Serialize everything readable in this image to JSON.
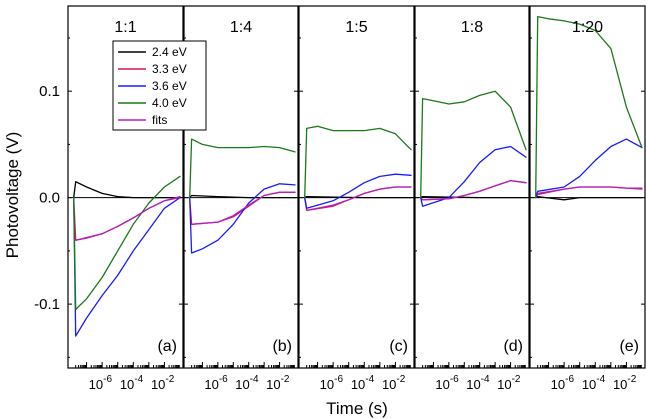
{
  "chart_data": {
    "type": "line",
    "xlabel": "Time (s)",
    "ylabel": "Photovoltage (V)",
    "xscale": "log",
    "xlim": [
      1e-08,
      0.1
    ],
    "ylim": [
      -0.16,
      0.18
    ],
    "yticks": [
      {
        "value": -0.1,
        "label": "-0.1"
      },
      {
        "value": 0.0,
        "label": "0.0"
      },
      {
        "value": 0.1,
        "label": "0.1"
      }
    ],
    "xticks": [
      {
        "value": 1e-06,
        "label": "10-6",
        "base": "10",
        "exp": "-6"
      },
      {
        "value": 0.0001,
        "label": "10-4",
        "base": "10",
        "exp": "-4"
      },
      {
        "value": 0.01,
        "label": "10-2",
        "base": "10",
        "exp": "-2"
      }
    ],
    "legend": [
      {
        "name": "2.4 eV",
        "color": "#000000"
      },
      {
        "name": "3.3 eV",
        "color": "#d4145a"
      },
      {
        "name": "3.6 eV",
        "color": "#1a1aff"
      },
      {
        "name": "4.0 eV",
        "color": "#1a7a1a"
      },
      {
        "name": "fits",
        "color": "#b020c0"
      }
    ],
    "legend_position": "top-left of first panel",
    "panels": [
      {
        "title": "1:1",
        "label": "(a)",
        "series": [
          {
            "name": "2.4 eV",
            "color": "#000000",
            "points": [
              [
                1.5e-08,
                0
              ],
              [
                2e-08,
                0.015
              ],
              [
                1e-07,
                0.01
              ],
              [
                1e-06,
                0.004
              ],
              [
                1e-05,
                0.001
              ],
              [
                0.0001,
                0
              ],
              [
                0.01,
                0
              ],
              [
                0.1,
                0
              ]
            ]
          },
          {
            "name": "3.3 eV",
            "color": "#d4145a",
            "points": [
              [
                1.5e-08,
                0
              ],
              [
                2e-08,
                -0.04
              ],
              [
                1e-07,
                -0.038
              ],
              [
                1e-06,
                -0.034
              ],
              [
                1e-05,
                -0.027
              ],
              [
                0.0001,
                -0.019
              ],
              [
                0.001,
                -0.01
              ],
              [
                0.01,
                -0.003
              ],
              [
                0.1,
                0.0
              ]
            ]
          },
          {
            "name": "3.6 eV",
            "color": "#1a1aff",
            "points": [
              [
                1.5e-08,
                0
              ],
              [
                2e-08,
                -0.13
              ],
              [
                1e-07,
                -0.113
              ],
              [
                1e-06,
                -0.092
              ],
              [
                1e-05,
                -0.073
              ],
              [
                0.0001,
                -0.05
              ],
              [
                0.001,
                -0.03
              ],
              [
                0.01,
                -0.01
              ],
              [
                0.1,
                0.0
              ]
            ]
          },
          {
            "name": "4.0 eV",
            "color": "#1a7a1a",
            "points": [
              [
                1.5e-08,
                0
              ],
              [
                2e-08,
                -0.105
              ],
              [
                1e-07,
                -0.095
              ],
              [
                1e-06,
                -0.075
              ],
              [
                1e-05,
                -0.05
              ],
              [
                0.0001,
                -0.025
              ],
              [
                0.001,
                -0.005
              ],
              [
                0.01,
                0.01
              ],
              [
                0.1,
                0.02
              ]
            ]
          },
          {
            "name": "fits",
            "color": "#b020c0",
            "points": [
              [
                2e-08,
                -0.04
              ],
              [
                1e-06,
                -0.034
              ],
              [
                1e-05,
                -0.027
              ],
              [
                0.0001,
                -0.019
              ],
              [
                0.001,
                -0.01
              ],
              [
                0.01,
                -0.003
              ],
              [
                0.1,
                0.001
              ]
            ]
          }
        ]
      },
      {
        "title": "1:4",
        "label": "(b)",
        "series": [
          {
            "name": "2.4 eV",
            "color": "#000000",
            "points": [
              [
                1.5e-08,
                0
              ],
              [
                2e-08,
                0.002
              ],
              [
                1e-06,
                0.001
              ],
              [
                0.0001,
                0
              ],
              [
                0.1,
                0
              ]
            ]
          },
          {
            "name": "3.3 eV",
            "color": "#d4145a",
            "points": [
              [
                1.5e-08,
                0
              ],
              [
                2e-08,
                -0.025
              ],
              [
                1e-06,
                -0.023
              ],
              [
                1e-05,
                -0.018
              ],
              [
                0.0001,
                -0.008
              ],
              [
                0.001,
                0.002
              ],
              [
                0.01,
                0.005
              ],
              [
                0.1,
                0.005
              ]
            ]
          },
          {
            "name": "3.6 eV",
            "color": "#1a1aff",
            "points": [
              [
                1.5e-08,
                0
              ],
              [
                2e-08,
                -0.052
              ],
              [
                1e-07,
                -0.048
              ],
              [
                1e-06,
                -0.04
              ],
              [
                1e-05,
                -0.025
              ],
              [
                0.0001,
                -0.005
              ],
              [
                0.001,
                0.008
              ],
              [
                0.01,
                0.013
              ],
              [
                0.1,
                0.012
              ]
            ]
          },
          {
            "name": "4.0 eV",
            "color": "#1a7a1a",
            "points": [
              [
                1.5e-08,
                0
              ],
              [
                2e-08,
                0.055
              ],
              [
                1e-07,
                0.05
              ],
              [
                1e-06,
                0.047
              ],
              [
                0.0001,
                0.047
              ],
              [
                0.001,
                0.048
              ],
              [
                0.01,
                0.047
              ],
              [
                0.1,
                0.043
              ]
            ]
          },
          {
            "name": "fits",
            "color": "#b020c0",
            "points": [
              [
                2e-08,
                -0.025
              ],
              [
                1e-06,
                -0.023
              ],
              [
                1e-05,
                -0.017
              ],
              [
                0.0001,
                -0.007
              ],
              [
                0.001,
                0.002
              ],
              [
                0.01,
                0.005
              ],
              [
                0.1,
                0.005
              ]
            ]
          }
        ]
      },
      {
        "title": "1:5",
        "label": "(c)",
        "series": [
          {
            "name": "2.4 eV",
            "color": "#000000",
            "points": [
              [
                1.5e-08,
                0
              ],
              [
                2e-08,
                0.001
              ],
              [
                0.0001,
                0
              ],
              [
                0.1,
                0
              ]
            ]
          },
          {
            "name": "3.3 eV",
            "color": "#d4145a",
            "points": [
              [
                1.5e-08,
                0
              ],
              [
                2e-08,
                -0.012
              ],
              [
                1e-06,
                -0.008
              ],
              [
                1e-05,
                -0.002
              ],
              [
                0.0001,
                0.004
              ],
              [
                0.001,
                0.008
              ],
              [
                0.01,
                0.01
              ],
              [
                0.1,
                0.01
              ]
            ]
          },
          {
            "name": "3.6 eV",
            "color": "#1a1aff",
            "points": [
              [
                1.5e-08,
                0
              ],
              [
                2e-08,
                -0.01
              ],
              [
                1e-06,
                -0.003
              ],
              [
                1e-05,
                0.005
              ],
              [
                0.0001,
                0.014
              ],
              [
                0.001,
                0.02
              ],
              [
                0.01,
                0.022
              ],
              [
                0.1,
                0.021
              ]
            ]
          },
          {
            "name": "4.0 eV",
            "color": "#1a7a1a",
            "points": [
              [
                1.5e-08,
                0
              ],
              [
                2e-08,
                0.065
              ],
              [
                1e-07,
                0.067
              ],
              [
                1e-06,
                0.063
              ],
              [
                0.0001,
                0.063
              ],
              [
                0.001,
                0.065
              ],
              [
                0.01,
                0.06
              ],
              [
                0.1,
                0.045
              ]
            ]
          },
          {
            "name": "fits",
            "color": "#b020c0",
            "points": [
              [
                2e-08,
                -0.012
              ],
              [
                1e-06,
                -0.007
              ],
              [
                1e-05,
                -0.002
              ],
              [
                0.0001,
                0.004
              ],
              [
                0.001,
                0.008
              ],
              [
                0.01,
                0.01
              ],
              [
                0.1,
                0.01
              ]
            ]
          }
        ]
      },
      {
        "title": "1:8",
        "label": "(d)",
        "series": [
          {
            "name": "2.4 eV",
            "color": "#000000",
            "points": [
              [
                1.5e-08,
                0
              ],
              [
                2e-08,
                0.001
              ],
              [
                0.0001,
                0
              ],
              [
                0.1,
                0
              ]
            ]
          },
          {
            "name": "3.3 eV",
            "color": "#d4145a",
            "points": [
              [
                1.5e-08,
                0
              ],
              [
                2e-08,
                -0.002
              ],
              [
                1e-06,
                -0.001
              ],
              [
                1e-05,
                0.002
              ],
              [
                0.0001,
                0.006
              ],
              [
                0.001,
                0.011
              ],
              [
                0.01,
                0.016
              ],
              [
                0.1,
                0.014
              ]
            ]
          },
          {
            "name": "3.6 eV",
            "color": "#1a1aff",
            "points": [
              [
                1.5e-08,
                0
              ],
              [
                2e-08,
                -0.008
              ],
              [
                1e-06,
                0
              ],
              [
                1e-05,
                0.015
              ],
              [
                0.0001,
                0.033
              ],
              [
                0.001,
                0.045
              ],
              [
                0.01,
                0.048
              ],
              [
                0.1,
                0.038
              ]
            ]
          },
          {
            "name": "4.0 eV",
            "color": "#1a7a1a",
            "points": [
              [
                1.5e-08,
                0
              ],
              [
                2e-08,
                0.093
              ],
              [
                1e-07,
                0.091
              ],
              [
                1e-06,
                0.088
              ],
              [
                1e-05,
                0.09
              ],
              [
                0.0001,
                0.096
              ],
              [
                0.001,
                0.1
              ],
              [
                0.01,
                0.085
              ],
              [
                0.1,
                0.045
              ]
            ]
          },
          {
            "name": "fits",
            "color": "#b020c0",
            "points": [
              [
                2e-08,
                -0.002
              ],
              [
                1e-06,
                -0.001
              ],
              [
                1e-05,
                0.002
              ],
              [
                0.0001,
                0.006
              ],
              [
                0.001,
                0.011
              ],
              [
                0.01,
                0.016
              ],
              [
                0.1,
                0.014
              ]
            ]
          }
        ]
      },
      {
        "title": "1:20",
        "label": "(e)",
        "series": [
          {
            "name": "2.4 eV",
            "color": "#000000",
            "points": [
              [
                1.5e-08,
                0
              ],
              [
                2e-08,
                0.001
              ],
              [
                1e-06,
                -0.002
              ],
              [
                1e-05,
                0
              ],
              [
                0.0001,
                0
              ],
              [
                0.1,
                0
              ]
            ]
          },
          {
            "name": "3.3 eV",
            "color": "#d4145a",
            "points": [
              [
                1.5e-08,
                0
              ],
              [
                2e-08,
                0.003
              ],
              [
                1e-06,
                0.008
              ],
              [
                1e-05,
                0.01
              ],
              [
                0.0001,
                0.01
              ],
              [
                0.001,
                0.01
              ],
              [
                0.01,
                0.009
              ],
              [
                0.1,
                0.008
              ]
            ]
          },
          {
            "name": "3.6 eV",
            "color": "#1a1aff",
            "points": [
              [
                1.5e-08,
                0
              ],
              [
                2e-08,
                0.006
              ],
              [
                1e-06,
                0.01
              ],
              [
                1e-05,
                0.02
              ],
              [
                0.0001,
                0.035
              ],
              [
                0.001,
                0.048
              ],
              [
                0.01,
                0.055
              ],
              [
                0.1,
                0.047
              ]
            ]
          },
          {
            "name": "4.0 eV",
            "color": "#1a7a1a",
            "points": [
              [
                1.5e-08,
                0
              ],
              [
                2e-08,
                0.17
              ],
              [
                1e-07,
                0.168
              ],
              [
                1e-06,
                0.166
              ],
              [
                1e-05,
                0.163
              ],
              [
                0.0001,
                0.157
              ],
              [
                0.001,
                0.14
              ],
              [
                0.01,
                0.085
              ],
              [
                0.1,
                0.047
              ]
            ]
          },
          {
            "name": "fits",
            "color": "#b020c0",
            "points": [
              [
                2e-08,
                0.004
              ],
              [
                1e-06,
                0.008
              ],
              [
                1e-05,
                0.01
              ],
              [
                0.0001,
                0.01
              ],
              [
                0.001,
                0.01
              ],
              [
                0.01,
                0.009
              ],
              [
                0.1,
                0.009
              ]
            ]
          }
        ]
      }
    ]
  }
}
